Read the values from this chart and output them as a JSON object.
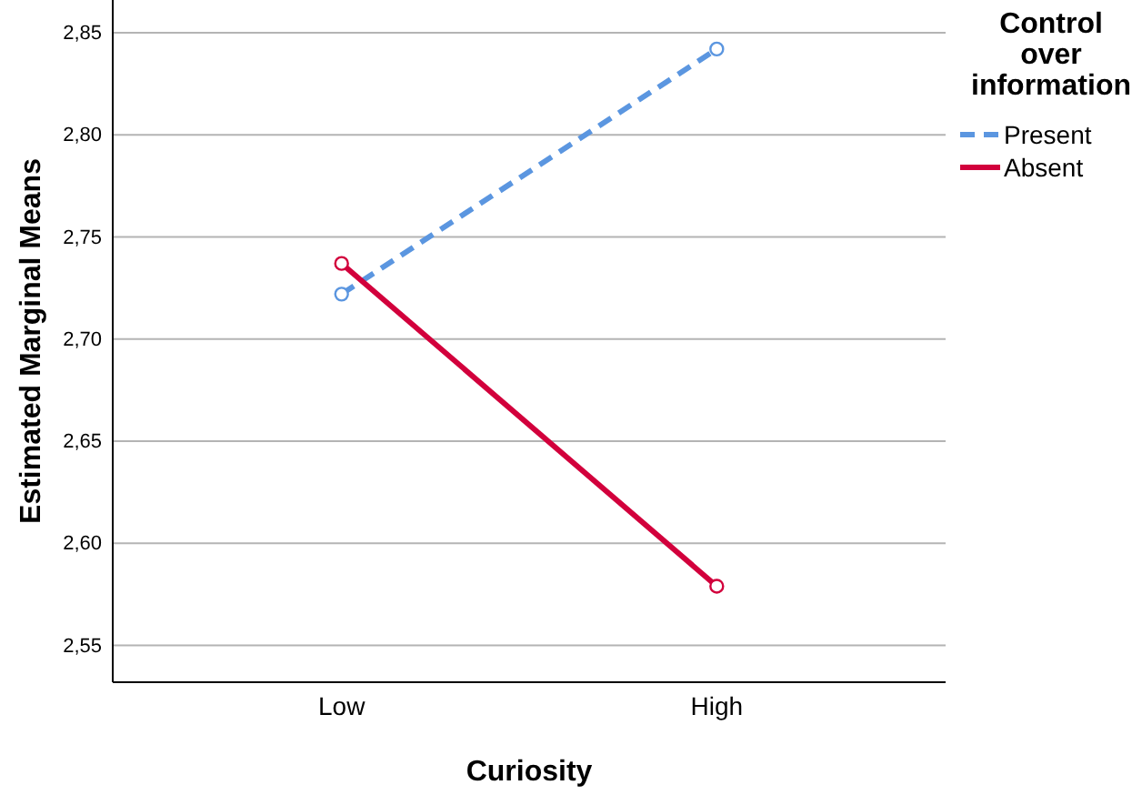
{
  "chart_data": {
    "type": "line",
    "xlabel": "Curiosity",
    "ylabel": "Estimated Marginal Means",
    "legend_title": "Control over information",
    "categories": [
      "Low",
      "High"
    ],
    "series": [
      {
        "name": "Present",
        "color": "#5b96e0",
        "values": [
          2.722,
          2.842
        ],
        "line_style": "dashed"
      },
      {
        "name": "Absent",
        "color": "#d2003c",
        "values": [
          2.737,
          2.579
        ],
        "line_style": "solid"
      }
    ],
    "ylim": [
      2.532,
      2.866
    ],
    "yticks": [
      {
        "value": 2.55,
        "label": "2,55"
      },
      {
        "value": 2.6,
        "label": "2,60"
      },
      {
        "value": 2.65,
        "label": "2,65"
      },
      {
        "value": 2.7,
        "label": "2,70"
      },
      {
        "value": 2.75,
        "label": "2,75"
      },
      {
        "value": 2.8,
        "label": "2,80"
      },
      {
        "value": 2.85,
        "label": "2,85"
      }
    ],
    "grid": "y",
    "legend": "top right",
    "marker": "circle"
  }
}
